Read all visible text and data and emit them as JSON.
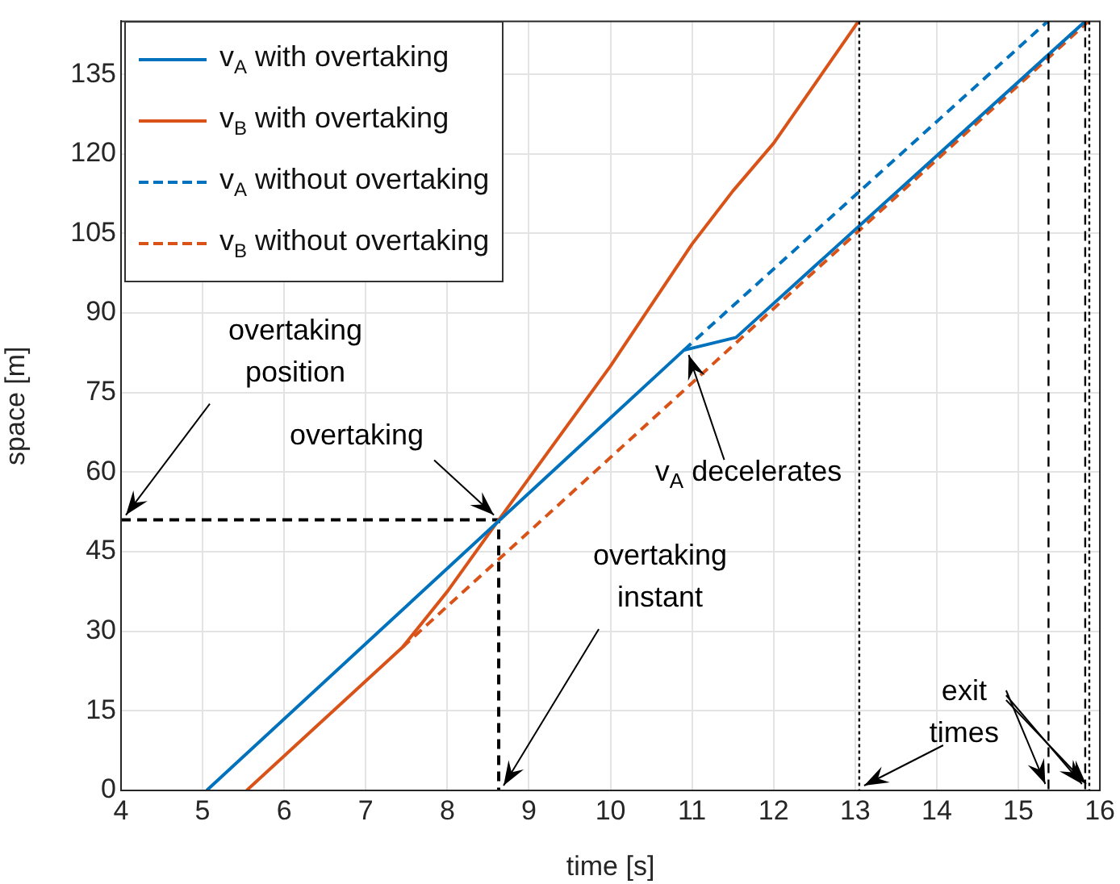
{
  "chart_data": {
    "type": "line",
    "xlabel": "time [s]",
    "ylabel": "space [m]",
    "xlim": [
      4,
      16
    ],
    "xticks": [
      4,
      5,
      6,
      7,
      8,
      9,
      10,
      11,
      12,
      13,
      14,
      15,
      16
    ],
    "ylim": [
      0,
      145
    ],
    "yticks": [
      0,
      15,
      30,
      45,
      60,
      75,
      90,
      105,
      120,
      135
    ],
    "grid": true,
    "legend": "top left",
    "marker": "none",
    "series": [
      {
        "name": "v$_{A}$ with overtaking",
        "color": "#0072bd",
        "line_style": "solid",
        "x": [
          5.05,
          10.9,
          11.54,
          15.82
        ],
        "values": [
          0,
          83,
          85.4,
          145
        ]
      },
      {
        "name": "v$_{B}$ with overtaking",
        "color": "#d95319",
        "line_style": "solid",
        "x": [
          5.54,
          7.45,
          8,
          8.63,
          10,
          11,
          11.5,
          12,
          13.04
        ],
        "values": [
          0,
          27,
          37.5,
          51,
          80,
          103,
          113,
          122,
          145
        ]
      },
      {
        "name": "v$_{A}$ without overtaking",
        "color": "#0072bd",
        "line_style": "dashed",
        "x": [
          10.9,
          15.36
        ],
        "values": [
          83,
          145
        ]
      },
      {
        "name": "v$_{B}$ without overtaking",
        "color": "#d95319",
        "line_style": "dashed",
        "x": [
          7.45,
          15.86
        ],
        "values": [
          27,
          145
        ]
      },
      {
        "color": "#000000",
        "line_style": "dashed",
        "x": [
          4,
          8.63,
          8.63
        ],
        "values": [
          51,
          51,
          0
        ]
      }
    ],
    "ref_lines": [
      {
        "axis": "x",
        "value": 13.05,
        "color": "#000000",
        "line_style": "dotted"
      },
      {
        "axis": "x",
        "value": 15.37,
        "color": "#000000",
        "line_style": "dashed"
      },
      {
        "axis": "x",
        "value": 15.82,
        "color": "#000000",
        "line_style": "dashed"
      },
      {
        "axis": "x",
        "value": 15.87,
        "color": "#000000",
        "line_style": "dotted"
      }
    ],
    "annotations": [
      {
        "text": "overtaking\nposition",
        "x": 4,
        "y": 51
      },
      {
        "text": "overtaking",
        "x": 8.63,
        "y": 51
      },
      {
        "text": "v$_{A}$ decelerates",
        "x": 10.9,
        "y": 83
      },
      {
        "text": "overtaking\ninstant",
        "x": 8.63,
        "y": 0
      },
      {
        "text": "exit\ntimes",
        "x": 13.05,
        "y": 0
      }
    ]
  }
}
